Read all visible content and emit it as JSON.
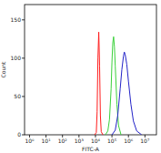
{
  "chart_data": {
    "type": "line",
    "x_label": "FITC-A",
    "y_label": "Count",
    "log": "x",
    "xlim": [
      0.5,
      50000000
    ],
    "ylim": [
      0,
      170
    ],
    "xticks": [
      {
        "value": 1,
        "label": "10⁰"
      },
      {
        "value": 10,
        "label": "10¹"
      },
      {
        "value": 100,
        "label": "10²"
      },
      {
        "value": 1000,
        "label": "10³"
      },
      {
        "value": 10000,
        "label": "10⁴"
      },
      {
        "value": 100000,
        "label": "10⁵"
      },
      {
        "value": 1000000,
        "label": "10⁶"
      },
      {
        "value": 10000000,
        "label": "10⁷"
      }
    ],
    "yticks": [
      0,
      50,
      100,
      150
    ],
    "series": [
      {
        "color": "#ff1a1a",
        "x": [
          8913,
          11220,
          12589,
          14125,
          15849,
          17783,
          19953,
          22387,
          28184
        ],
        "values": [
          0,
          3,
          30,
          100,
          134,
          90,
          25,
          4,
          0
        ]
      },
      {
        "color": "#3ad13a",
        "x": [
          39811,
          56234,
          70795,
          89125,
          100000,
          112202,
          125893,
          141254,
          158489,
          199526,
          251189,
          354813
        ],
        "values": [
          0,
          5,
          20,
          60,
          95,
          120,
          128,
          115,
          90,
          40,
          12,
          0
        ]
      },
      {
        "color": "#2323c8",
        "x": [
          100000,
          158489,
          223872,
          316228,
          398107,
          501187,
          562341,
          630957,
          794328,
          1000000,
          1412538,
          1995262,
          3162278,
          6309573
        ],
        "values": [
          0,
          6,
          25,
          60,
          85,
          103,
          108,
          105,
          92,
          70,
          40,
          18,
          5,
          0
        ]
      }
    ]
  }
}
